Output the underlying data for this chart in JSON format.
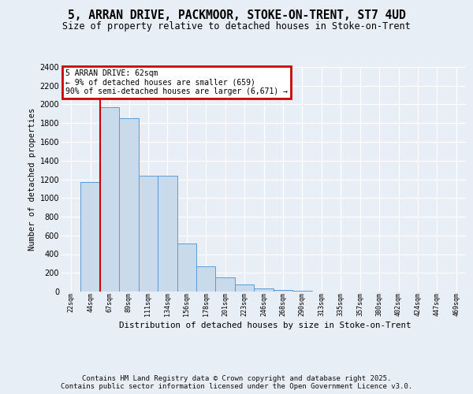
{
  "title": "5, ARRAN DRIVE, PACKMOOR, STOKE-ON-TRENT, ST7 4UD",
  "subtitle": "Size of property relative to detached houses in Stoke-on-Trent",
  "xlabel": "Distribution of detached houses by size in Stoke-on-Trent",
  "ylabel": "Number of detached properties",
  "categories": [
    "22sqm",
    "44sqm",
    "67sqm",
    "89sqm",
    "111sqm",
    "134sqm",
    "156sqm",
    "178sqm",
    "201sqm",
    "223sqm",
    "246sqm",
    "268sqm",
    "290sqm",
    "313sqm",
    "335sqm",
    "357sqm",
    "380sqm",
    "402sqm",
    "424sqm",
    "447sqm",
    "469sqm"
  ],
  "values": [
    3,
    1170,
    1970,
    1850,
    1240,
    1240,
    515,
    270,
    155,
    80,
    30,
    20,
    5,
    2,
    1,
    1,
    0,
    0,
    0,
    0,
    0
  ],
  "bar_color": "#c9daea",
  "bar_edge_color": "#5b9bd5",
  "red_line_x": 1.5,
  "annotation_title": "5 ARRAN DRIVE: 62sqm",
  "annotation_line1": "← 9% of detached houses are smaller (659)",
  "annotation_line2": "90% of semi-detached houses are larger (6,671) →",
  "annotation_color": "#cc0000",
  "ylim_max": 2400,
  "yticks": [
    0,
    200,
    400,
    600,
    800,
    1000,
    1200,
    1400,
    1600,
    1800,
    2000,
    2200,
    2400
  ],
  "bg_color": "#e8eef5",
  "footer_line1": "Contains HM Land Registry data © Crown copyright and database right 2025.",
  "footer_line2": "Contains public sector information licensed under the Open Government Licence v3.0."
}
